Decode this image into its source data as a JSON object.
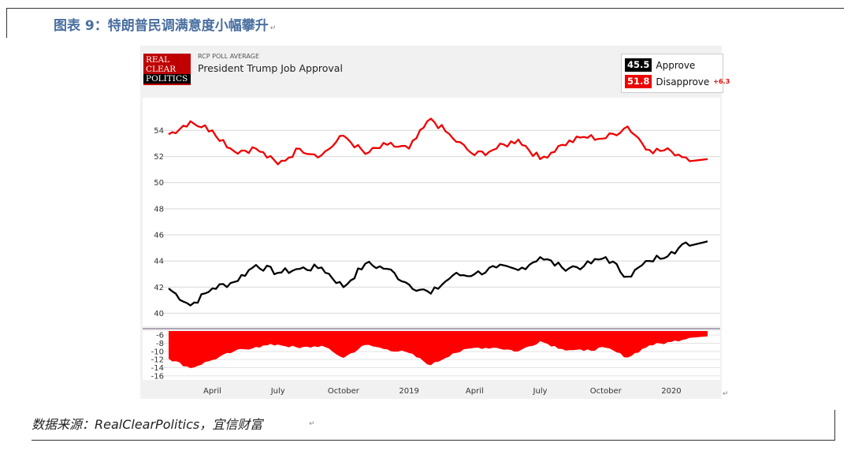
{
  "figure": {
    "title": "图表 9：特朗普民调满意度小幅攀升",
    "source": "数据来源：RealClearPolitics，宜信财富"
  },
  "rcp": {
    "logo_lines": [
      "REAL",
      "CLEAR",
      "POLITICS"
    ],
    "subtitle": "RCP POLL AVERAGE",
    "title": "President Trump Job Approval",
    "approve_value": "45.5",
    "approve_label": "Approve",
    "disapprove_value": "51.8",
    "disapprove_label": "Disapprove",
    "spread": "+6.3"
  },
  "colors": {
    "approve": "#000000",
    "disapprove": "#ee0000",
    "spread": "#ff0000",
    "title": "#4a6fa0",
    "logo": "#c00000"
  },
  "chart_data": [
    {
      "type": "line",
      "x": [
        "2018-02",
        "2018-03",
        "2018-04",
        "2018-05",
        "2018-06",
        "2018-07",
        "2018-08",
        "2018-09",
        "2018-10",
        "2018-11",
        "2018-12",
        "2019-01",
        "2019-02",
        "2019-03",
        "2019-04",
        "2019-05",
        "2019-06",
        "2019-07",
        "2019-08",
        "2019-09",
        "2019-10",
        "2019-11",
        "2019-12",
        "2020-01",
        "2020-02"
      ],
      "series": [
        {
          "name": "Approve",
          "values": [
            41.9,
            40.6,
            41.9,
            42.4,
            43.7,
            43.1,
            43.4,
            43.5,
            42.0,
            43.8,
            43.4,
            42.2,
            41.5,
            42.9,
            43.0,
            43.5,
            43.3,
            44.3,
            43.5,
            43.6,
            44.3,
            42.8,
            44.0,
            44.7,
            45.5
          ]
        },
        {
          "name": "Disapprove",
          "values": [
            53.7,
            54.7,
            54.0,
            52.4,
            52.6,
            51.4,
            52.6,
            52.1,
            53.6,
            52.2,
            52.9,
            52.6,
            54.9,
            53.4,
            52.1,
            52.6,
            53.3,
            51.8,
            52.9,
            53.5,
            53.4,
            54.3,
            52.5,
            52.4,
            51.8
          ]
        }
      ],
      "xticks": [
        "April",
        "July",
        "October",
        "2019",
        "April",
        "July",
        "October",
        "2020"
      ],
      "yticks": [
        40,
        42,
        44,
        46,
        48,
        50,
        52,
        54
      ],
      "ylim": [
        39,
        56.5
      ]
    },
    {
      "type": "area",
      "x": [
        "2018-02",
        "2018-03",
        "2018-04",
        "2018-05",
        "2018-06",
        "2018-07",
        "2018-08",
        "2018-09",
        "2018-10",
        "2018-11",
        "2018-12",
        "2019-01",
        "2019-02",
        "2019-03",
        "2019-04",
        "2019-05",
        "2019-06",
        "2019-07",
        "2019-08",
        "2019-09",
        "2019-10",
        "2019-11",
        "2019-12",
        "2020-01",
        "2020-02"
      ],
      "series": [
        {
          "name": "Spread",
          "values": [
            -11.8,
            -14.1,
            -12.1,
            -10.0,
            -8.9,
            -8.3,
            -9.2,
            -8.6,
            -11.6,
            -8.4,
            -9.5,
            -10.4,
            -13.4,
            -10.5,
            -9.1,
            -9.1,
            -10.0,
            -7.5,
            -9.4,
            -9.9,
            -9.1,
            -11.5,
            -8.5,
            -7.7,
            -6.3
          ]
        }
      ],
      "yticks": [
        -6,
        -8,
        -10,
        -12,
        -14,
        -16
      ],
      "ylim": [
        -17,
        -5
      ]
    }
  ]
}
